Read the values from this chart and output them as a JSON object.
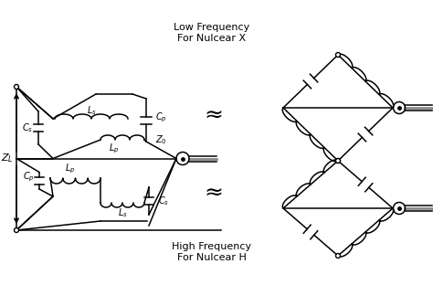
{
  "bg_color": "#ffffff",
  "line_color": "#000000",
  "low_freq_label": "Low Frequency\nFor Nulcear X",
  "high_freq_label": "High Frequency\nFor Nulcear H",
  "figw": 4.74,
  "figh": 3.12,
  "dpi": 100
}
